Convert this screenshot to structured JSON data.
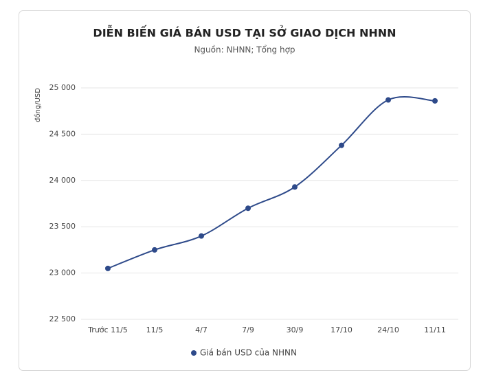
{
  "chart_data": {
    "type": "line",
    "title": "DIỄN BIẾN GIÁ BÁN USD TẠI SỞ GIAO DỊCH NHNN",
    "subtitle": "Nguồn: NHNN; Tổng hợp",
    "y_label": "đồng/USD",
    "categories": [
      "Trước 11/5",
      "11/5",
      "4/7",
      "7/9",
      "30/9",
      "17/10",
      "24/10",
      "11/11"
    ],
    "series": [
      {
        "name": "Giá bán USD của NHNN",
        "color": "#2e4a8a",
        "values": [
          23050,
          23250,
          23400,
          23700,
          23930,
          24380,
          24870,
          24860
        ]
      }
    ],
    "ylim": [
      22500,
      25000
    ],
    "yticks": [
      {
        "value": 22500,
        "label": "22 500"
      },
      {
        "value": 23000,
        "label": "23 000"
      },
      {
        "value": 23500,
        "label": "23 500"
      },
      {
        "value": 24000,
        "label": "24 000"
      },
      {
        "value": 24500,
        "label": "24 500"
      },
      {
        "value": 25000,
        "label": "25 000"
      }
    ],
    "grid": true
  }
}
